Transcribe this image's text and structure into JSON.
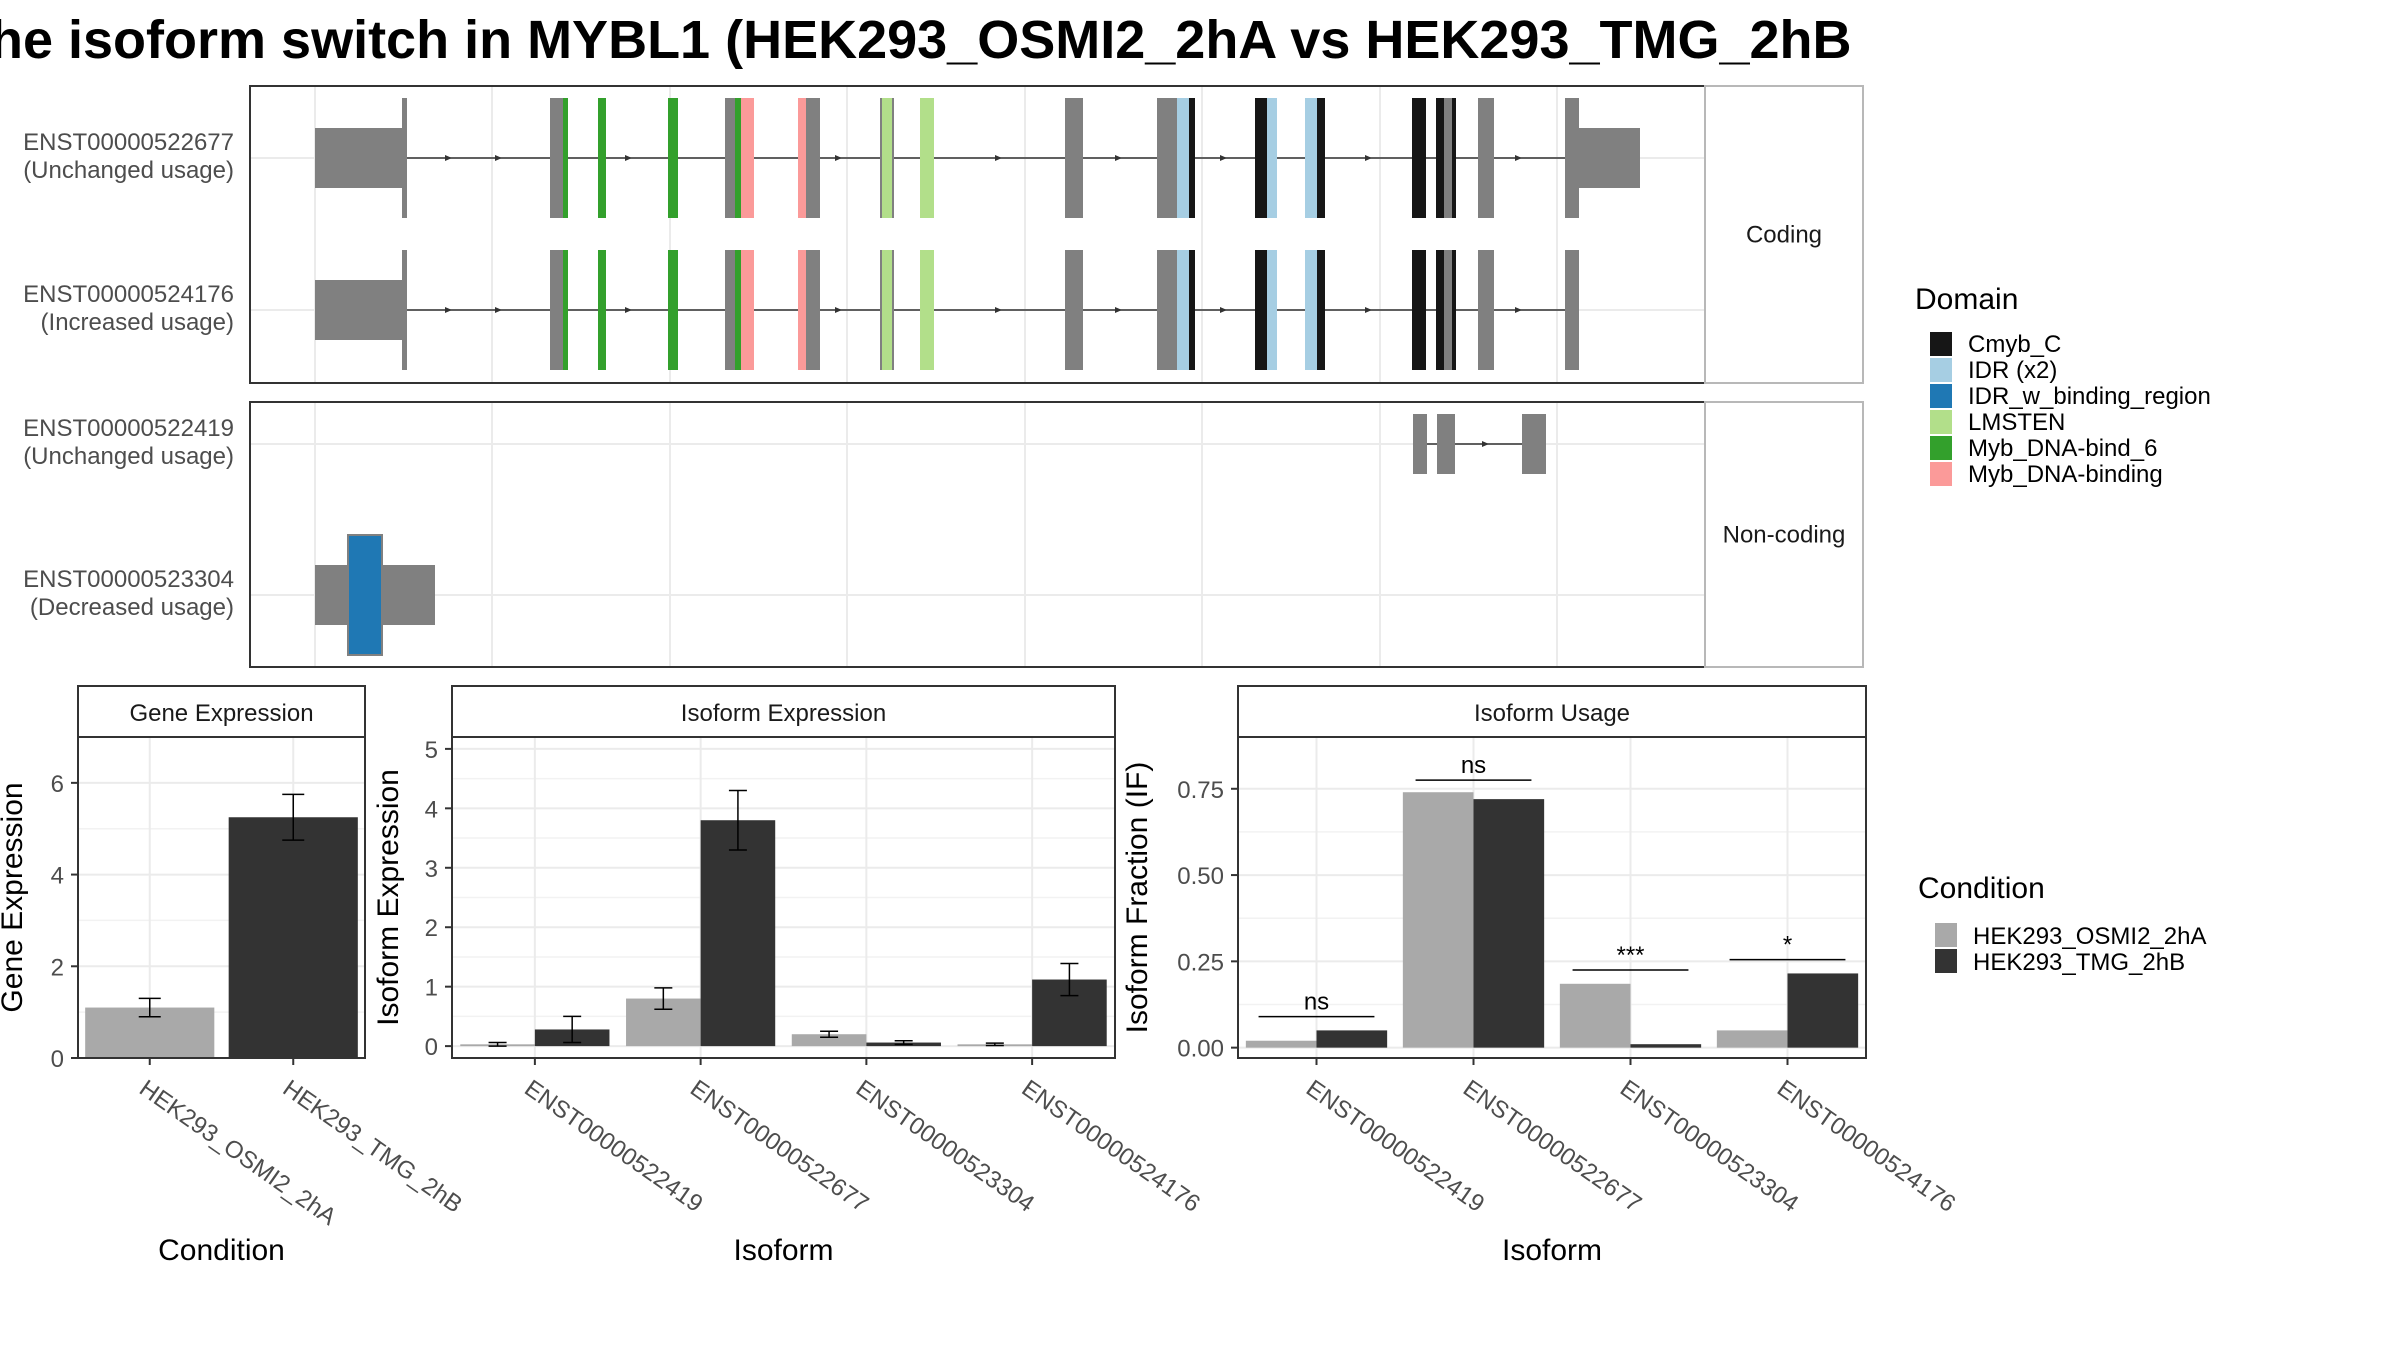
{
  "title": "he isoform switch in MYBL1 (HEK293_OSMI2_2hA vs HEK293_TMG_2hB",
  "colors": {
    "domain": {
      "Cmyb_C": "#161616",
      "IDR (x2)": "#a6cee3",
      "IDR_w_binding_region": "#1f78b4",
      "LMSTEN": "#b2df8a",
      "Myb_DNA-bind_6": "#33a02c",
      "Myb_DNA-binding": "#fb9a99"
    },
    "exon": "#808080",
    "condition": {
      "HEK293_OSMI2_2hA": "#a9a9a9",
      "HEK293_TMG_2hB": "#333333"
    }
  },
  "structure": {
    "facets": [
      {
        "label": "Coding",
        "transcripts": [
          {
            "id": "ENST00000522677",
            "status": "(Unchanged usage)"
          },
          {
            "id": "ENST00000524176",
            "status": "(Increased usage)"
          }
        ]
      },
      {
        "label": "Non-coding",
        "transcripts": [
          {
            "id": "ENST00000522419",
            "status": "(Unchanged usage)"
          },
          {
            "id": "ENST00000523304",
            "status": "(Decreased usage)"
          }
        ]
      }
    ],
    "legend_title": "Domain",
    "legend_items": [
      "Cmyb_C",
      "IDR (x2)",
      "IDR_w_binding_region",
      "LMSTEN",
      "Myb_DNA-bind_6",
      "Myb_DNA-binding"
    ]
  },
  "chart_data": [
    {
      "type": "bar",
      "title": "Gene Expression",
      "xlabel": "Condition",
      "ylabel": "Gene Expression",
      "categories": [
        "HEK293_OSMI2_2hA",
        "HEK293_TMG_2hB"
      ],
      "values": [
        1.1,
        5.25
      ],
      "errors": [
        0.2,
        0.5
      ],
      "ylim": [
        0,
        7
      ],
      "yticks": [
        0,
        2,
        4,
        6
      ]
    },
    {
      "type": "bar",
      "title": "Isoform Expression",
      "xlabel": "Isoform",
      "ylabel": "Isoform Expression",
      "categories": [
        "ENST00000522419",
        "ENST00000522677",
        "ENST00000523304",
        "ENST00000524176"
      ],
      "series": [
        {
          "name": "HEK293_OSMI2_2hA",
          "values": [
            0.03,
            0.8,
            0.2,
            0.03
          ],
          "errors": [
            0.03,
            0.18,
            0.05,
            0.02
          ]
        },
        {
          "name": "HEK293_TMG_2hB",
          "values": [
            0.28,
            3.8,
            0.06,
            1.12
          ],
          "errors": [
            0.22,
            0.5,
            0.03,
            0.27
          ]
        }
      ],
      "ylim": [
        -0.2,
        5.2
      ],
      "yticks": [
        0,
        1,
        2,
        3,
        4,
        5
      ]
    },
    {
      "type": "bar",
      "title": "Isoform Usage",
      "xlabel": "Isoform",
      "ylabel": "Isoform Fraction (IF)",
      "categories": [
        "ENST00000522419",
        "ENST00000522677",
        "ENST00000523304",
        "ENST00000524176"
      ],
      "series": [
        {
          "name": "HEK293_OSMI2_2hA",
          "values": [
            0.02,
            0.74,
            0.185,
            0.05
          ]
        },
        {
          "name": "HEK293_TMG_2hB",
          "values": [
            0.05,
            0.72,
            0.01,
            0.215
          ]
        }
      ],
      "significance": [
        "ns",
        "ns",
        "***",
        "*"
      ],
      "significance_y": [
        0.09,
        0.775,
        0.225,
        0.255
      ],
      "ylim": [
        -0.03,
        0.9
      ],
      "yticks": [
        "0.00",
        "0.25",
        "0.50",
        "0.75"
      ]
    }
  ],
  "legend_condition": {
    "title": "Condition",
    "items": [
      "HEK293_OSMI2_2hA",
      "HEK293_TMG_2hB"
    ]
  }
}
